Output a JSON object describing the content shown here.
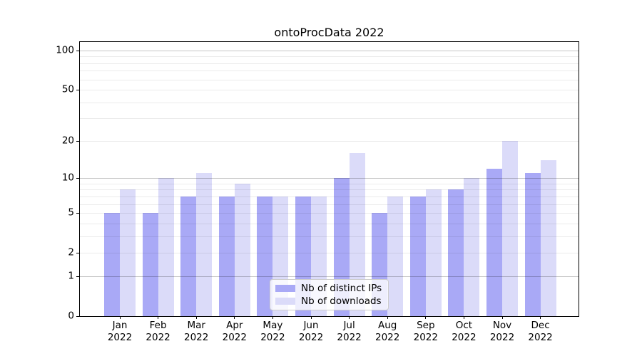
{
  "title": "ontoProcData 2022",
  "chart_data": {
    "type": "bar",
    "title": "ontoProcData 2022",
    "categories": [
      "Jan",
      "Feb",
      "Mar",
      "Apr",
      "May",
      "Jun",
      "Jul",
      "Aug",
      "Sep",
      "Oct",
      "Nov",
      "Dec"
    ],
    "category_year": "2022",
    "series": [
      {
        "name": "Nb of distinct IPs",
        "color": "#a9a9f6",
        "values": [
          5,
          5,
          7,
          7,
          7,
          7,
          10,
          5,
          7,
          8,
          12,
          11
        ]
      },
      {
        "name": "Nb of downloads",
        "color": "#dbdbf9",
        "values": [
          8,
          10,
          11,
          9,
          7,
          7,
          16,
          7,
          8,
          10,
          20,
          14
        ]
      }
    ],
    "yscale": "log1p",
    "ylim": [
      0,
      116
    ],
    "ytick_values": [
      0,
      1,
      2,
      5,
      10,
      20,
      50,
      100
    ],
    "major_gridline_values": [
      1,
      10,
      100
    ],
    "minor_gridline_values": [
      2,
      3,
      4,
      5,
      6,
      7,
      8,
      9,
      20,
      30,
      40,
      50,
      60,
      70,
      80,
      90
    ],
    "grid": true,
    "legend_position": "lower center"
  },
  "colors": {
    "bar_distinct_ips": "#a9a9f6",
    "bar_downloads": "#dbdbf9",
    "spine": "#000000",
    "major_grid": "#c6c6c6",
    "minor_grid": "#ebebeb",
    "legend_border": "#cccccc",
    "text": "#000000"
  }
}
